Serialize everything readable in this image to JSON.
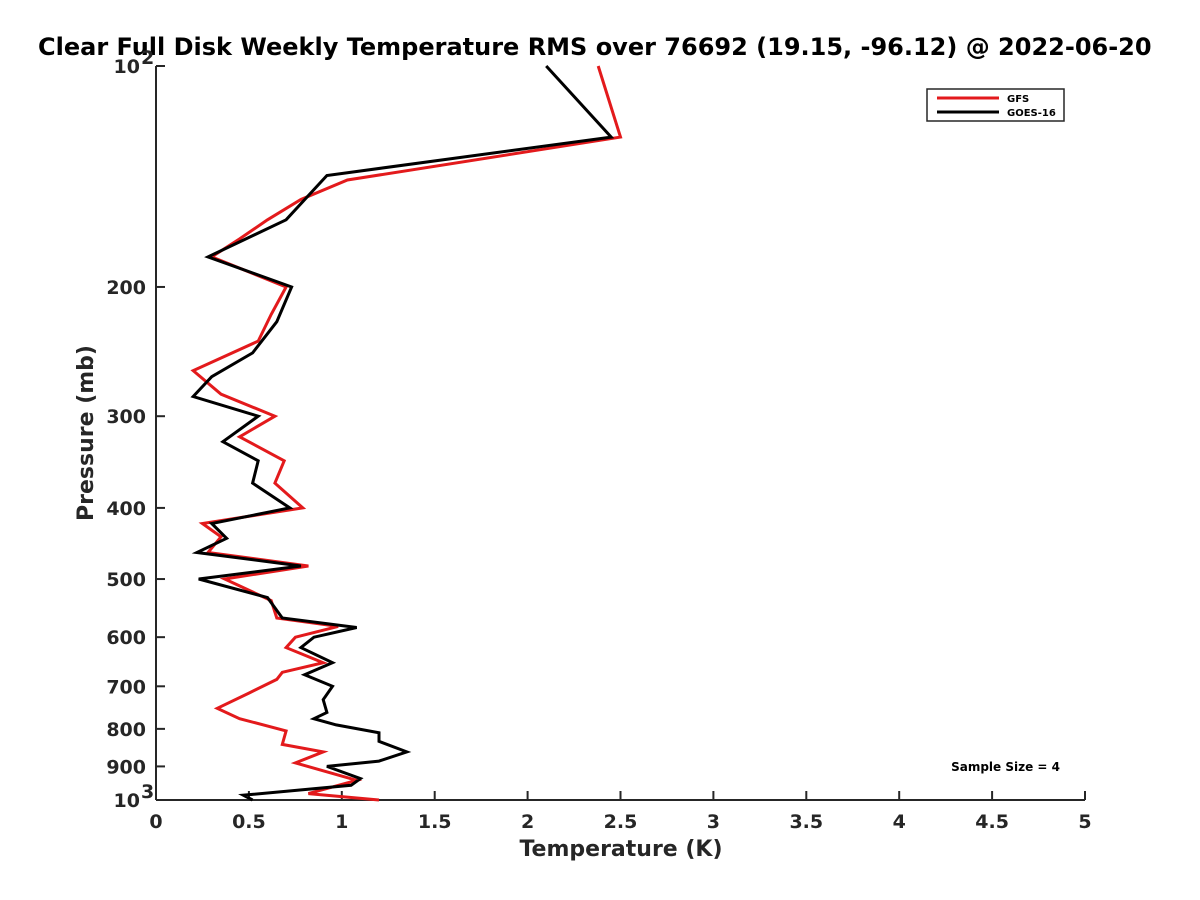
{
  "chart_data": {
    "type": "line",
    "title": "Clear Full Disk Weekly Temperature RMS over 76692 (19.15, -96.12) @ 2022-06-20",
    "xlabel": "Temperature (K)",
    "ylabel": "Pressure (mb)",
    "xlim": [
      0,
      5
    ],
    "ylim": [
      100,
      1000
    ],
    "yscale": "log",
    "y_reversed": true,
    "x_ticks": [
      0,
      0.5,
      1,
      1.5,
      2,
      2.5,
      3,
      3.5,
      4,
      4.5,
      5
    ],
    "x_tick_labels": [
      "0",
      "0.5",
      "1",
      "1.5",
      "2",
      "2.5",
      "3",
      "3.5",
      "4",
      "4.5",
      "5"
    ],
    "y_ticks": [
      100,
      200,
      300,
      400,
      500,
      600,
      700,
      800,
      900,
      1000
    ],
    "y_tick_labels": [
      {
        "base": "10",
        "exp": "2"
      },
      {
        "base": "200",
        "exp": ""
      },
      {
        "base": "300",
        "exp": ""
      },
      {
        "base": "400",
        "exp": ""
      },
      {
        "base": "500",
        "exp": ""
      },
      {
        "base": "600",
        "exp": ""
      },
      {
        "base": "700",
        "exp": ""
      },
      {
        "base": "800",
        "exp": ""
      },
      {
        "base": "900",
        "exp": ""
      },
      {
        "base": "10",
        "exp": "3"
      }
    ],
    "grid": false,
    "legend_position": "top-right",
    "annotation": "Sample Size = 4",
    "series": [
      {
        "name": "GFS",
        "color": "#e31a1c",
        "points": [
          {
            "x": 2.38,
            "p": 100
          },
          {
            "x": 2.5,
            "p": 125
          },
          {
            "x": 1.03,
            "p": 143
          },
          {
            "x": 0.78,
            "p": 152
          },
          {
            "x": 0.6,
            "p": 162
          },
          {
            "x": 0.45,
            "p": 172
          },
          {
            "x": 0.3,
            "p": 182
          },
          {
            "x": 0.7,
            "p": 200
          },
          {
            "x": 0.62,
            "p": 218
          },
          {
            "x": 0.55,
            "p": 237
          },
          {
            "x": 0.2,
            "p": 260
          },
          {
            "x": 0.35,
            "p": 280
          },
          {
            "x": 0.64,
            "p": 300
          },
          {
            "x": 0.45,
            "p": 320
          },
          {
            "x": 0.69,
            "p": 345
          },
          {
            "x": 0.64,
            "p": 370
          },
          {
            "x": 0.79,
            "p": 400
          },
          {
            "x": 0.25,
            "p": 420
          },
          {
            "x": 0.35,
            "p": 438
          },
          {
            "x": 0.28,
            "p": 460
          },
          {
            "x": 0.82,
            "p": 480
          },
          {
            "x": 0.37,
            "p": 500
          },
          {
            "x": 0.62,
            "p": 535
          },
          {
            "x": 0.65,
            "p": 565
          },
          {
            "x": 0.98,
            "p": 580
          },
          {
            "x": 0.75,
            "p": 600
          },
          {
            "x": 0.7,
            "p": 620
          },
          {
            "x": 0.9,
            "p": 650
          },
          {
            "x": 0.68,
            "p": 670
          },
          {
            "x": 0.65,
            "p": 685
          },
          {
            "x": 0.5,
            "p": 715
          },
          {
            "x": 0.33,
            "p": 750
          },
          {
            "x": 0.45,
            "p": 775
          },
          {
            "x": 0.7,
            "p": 805
          },
          {
            "x": 0.68,
            "p": 840
          },
          {
            "x": 0.9,
            "p": 860
          },
          {
            "x": 0.75,
            "p": 890
          },
          {
            "x": 1.08,
            "p": 940
          },
          {
            "x": 0.82,
            "p": 980
          },
          {
            "x": 1.2,
            "p": 1000
          }
        ]
      },
      {
        "name": "GOES-16",
        "color": "#000000",
        "points": [
          {
            "x": 2.1,
            "p": 100
          },
          {
            "x": 2.45,
            "p": 125
          },
          {
            "x": 0.92,
            "p": 141
          },
          {
            "x": 0.7,
            "p": 162
          },
          {
            "x": 0.28,
            "p": 182
          },
          {
            "x": 0.73,
            "p": 200
          },
          {
            "x": 0.65,
            "p": 223
          },
          {
            "x": 0.52,
            "p": 246
          },
          {
            "x": 0.3,
            "p": 265
          },
          {
            "x": 0.2,
            "p": 282
          },
          {
            "x": 0.55,
            "p": 300
          },
          {
            "x": 0.36,
            "p": 325
          },
          {
            "x": 0.55,
            "p": 345
          },
          {
            "x": 0.52,
            "p": 370
          },
          {
            "x": 0.72,
            "p": 400
          },
          {
            "x": 0.3,
            "p": 420
          },
          {
            "x": 0.38,
            "p": 440
          },
          {
            "x": 0.22,
            "p": 460
          },
          {
            "x": 0.78,
            "p": 480
          },
          {
            "x": 0.23,
            "p": 500
          },
          {
            "x": 0.6,
            "p": 530
          },
          {
            "x": 0.68,
            "p": 565
          },
          {
            "x": 1.08,
            "p": 582
          },
          {
            "x": 0.85,
            "p": 600
          },
          {
            "x": 0.78,
            "p": 620
          },
          {
            "x": 0.95,
            "p": 650
          },
          {
            "x": 0.8,
            "p": 675
          },
          {
            "x": 0.95,
            "p": 700
          },
          {
            "x": 0.9,
            "p": 730
          },
          {
            "x": 0.92,
            "p": 760
          },
          {
            "x": 0.85,
            "p": 775
          },
          {
            "x": 0.97,
            "p": 790
          },
          {
            "x": 1.2,
            "p": 810
          },
          {
            "x": 1.2,
            "p": 832
          },
          {
            "x": 1.35,
            "p": 860
          },
          {
            "x": 1.2,
            "p": 885
          },
          {
            "x": 0.92,
            "p": 900
          },
          {
            "x": 1.1,
            "p": 935
          },
          {
            "x": 1.05,
            "p": 955
          },
          {
            "x": 0.47,
            "p": 985
          },
          {
            "x": 0.52,
            "p": 1000
          }
        ]
      }
    ]
  }
}
